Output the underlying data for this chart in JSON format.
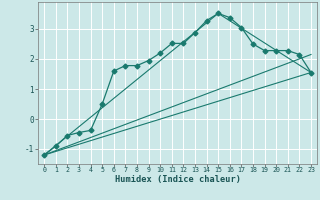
{
  "xlabel": "Humidex (Indice chaleur)",
  "bg_color": "#cce8e8",
  "grid_color": "#ffffff",
  "line_color": "#1a7a6e",
  "xlim": [
    -0.5,
    23.5
  ],
  "ylim": [
    -1.5,
    3.9
  ],
  "yticks": [
    -1,
    0,
    1,
    2,
    3
  ],
  "xticks": [
    0,
    1,
    2,
    3,
    4,
    5,
    6,
    7,
    8,
    9,
    10,
    11,
    12,
    13,
    14,
    15,
    16,
    17,
    18,
    19,
    20,
    21,
    22,
    23
  ],
  "line1_x": [
    0,
    1,
    2,
    3,
    4,
    5,
    6,
    7,
    8,
    9,
    10,
    11,
    12,
    13,
    14,
    15,
    16,
    17,
    18,
    19,
    20,
    21,
    22,
    23
  ],
  "line1_y": [
    -1.2,
    -0.9,
    -0.55,
    -0.45,
    -0.38,
    0.5,
    1.6,
    1.78,
    1.78,
    1.95,
    2.2,
    2.52,
    2.52,
    2.88,
    3.28,
    3.52,
    3.38,
    3.05,
    2.5,
    2.28,
    2.28,
    2.28,
    2.15,
    1.55
  ],
  "line2_x": [
    0,
    23
  ],
  "line2_y": [
    -1.2,
    1.55
  ],
  "line3_x": [
    0,
    15,
    23
  ],
  "line3_y": [
    -1.2,
    3.52,
    1.55
  ],
  "line4_x": [
    0,
    23
  ],
  "line4_y": [
    -1.2,
    2.15
  ],
  "marker": "D",
  "marker_size": 2.5
}
